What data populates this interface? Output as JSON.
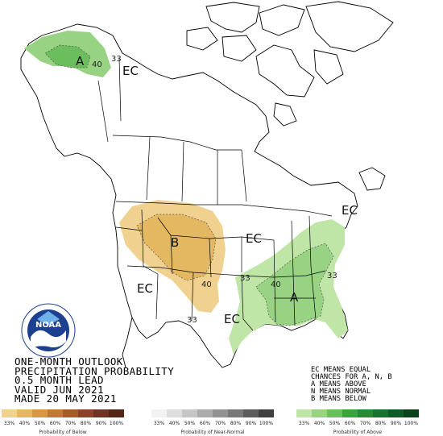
{
  "title_block": {
    "line1": "ONE-MONTH OUTLOOK",
    "line2": "PRECIPITATION PROBABILITY",
    "line3": "0.5 MONTH LEAD",
    "line4": "VALID JUN 2021",
    "line5": "MADE 20 MAY 2021"
  },
  "key": {
    "line1": "EC MEANS EQUAL",
    "line2": "CHANCES FOR A, N, B",
    "line3": "A MEANS ABOVE",
    "line4": "N MEANS NORMAL",
    "line5": "B MEANS BELOW"
  },
  "map_labels": {
    "ec_alaska": "EC",
    "ec_northeast": "EC",
    "ec_central": "EC",
    "ec_southwest": "EC",
    "ec_texas": "EC",
    "a_alaska": "A",
    "a_southeast": "A",
    "b_northwest": "B"
  },
  "contour_labels": {
    "alaska_40": "40",
    "alaska_33": "33",
    "west_40": "40",
    "west_33": "33",
    "east_33": "33",
    "east_40": "40",
    "east_33b": "33"
  },
  "logo": {
    "text": "NOAA"
  },
  "legend": {
    "below": {
      "caption": "Probability of Below",
      "ticks": [
        "33%",
        "40%",
        "50%",
        "60%",
        "70%",
        "80%",
        "90%",
        "100%"
      ],
      "colors": [
        "#f0d190",
        "#e3b860",
        "#d39a42",
        "#bf7b33",
        "#a35c2b",
        "#884426",
        "#6e3422",
        "#532718"
      ]
    },
    "normal": {
      "caption": "Probability of Near-Normal",
      "ticks": [
        "33%",
        "40%",
        "50%",
        "60%",
        "70%",
        "80%",
        "90%",
        "100%"
      ],
      "colors": [
        "#f2f2f2",
        "#dedede",
        "#c6c6c6",
        "#acacac",
        "#929292",
        "#787878",
        "#5c5c5c",
        "#404040"
      ]
    },
    "above": {
      "caption": "Probability of Above",
      "ticks": [
        "33%",
        "40%",
        "50%",
        "60%",
        "70%",
        "80%",
        "90%",
        "100%"
      ],
      "colors": [
        "#bfe6a6",
        "#97d383",
        "#6cbd5d",
        "#3fa241",
        "#258b37",
        "#1a722d",
        "#125a25",
        "#0b421b"
      ]
    }
  }
}
